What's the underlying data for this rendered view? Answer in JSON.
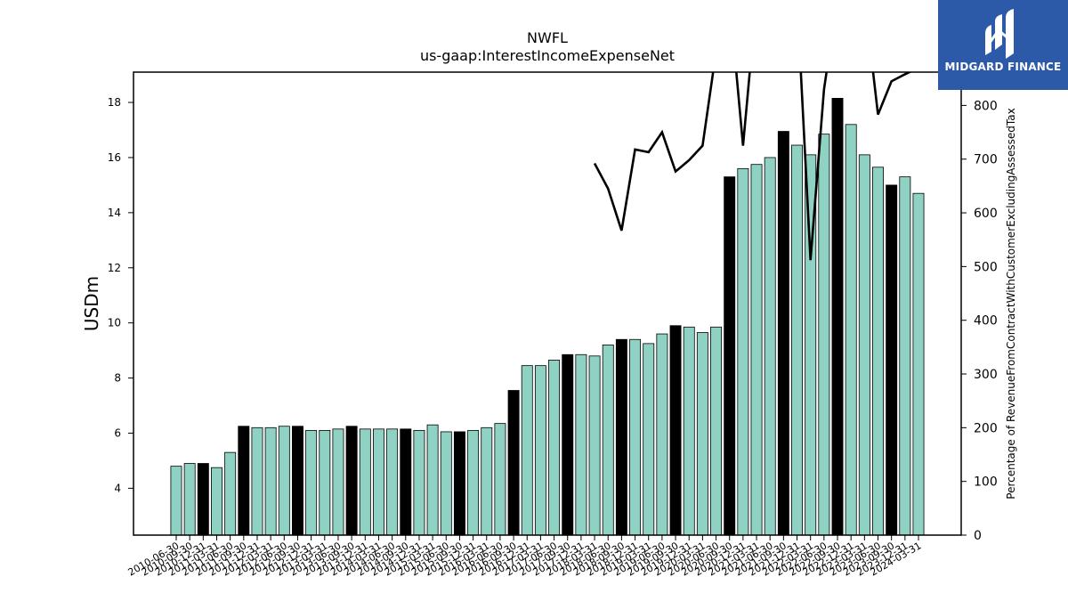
{
  "chart_data": {
    "type": "bar",
    "title": "NWFL",
    "subtitle": "us-gaap:InterestIncomeExpenseNet",
    "ylabel": "USDm",
    "y2label": "Percentage of RevenueFromContractWithCustomerExcludingAssessedTax",
    "ylim": [
      2.3,
      19.1
    ],
    "y2lim": [
      0,
      862
    ],
    "yticks": [
      4,
      6,
      8,
      10,
      12,
      14,
      16,
      18
    ],
    "y2ticks": [
      0,
      100,
      200,
      300,
      400,
      500,
      600,
      700,
      800
    ],
    "categories": [
      "2010-06-30",
      "2010-09-30",
      "2010-12-31",
      "2011-03-31",
      "2011-06-30",
      "2011-09-30",
      "2011-12-31",
      "2012-03-31",
      "2012-06-30",
      "2012-09-30",
      "2012-12-31",
      "2013-03-31",
      "2013-06-30",
      "2013-09-30",
      "2013-12-31",
      "2014-03-31",
      "2014-06-30",
      "2014-09-30",
      "2014-12-31",
      "2015-03-31",
      "2015-06-30",
      "2015-09-30",
      "2015-12-31",
      "2016-03-31",
      "2016-06-30",
      "2016-09-30",
      "2016-12-31",
      "2017-03-31",
      "2017-06-30",
      "2017-09-30",
      "2017-12-31",
      "2018-03-31",
      "2018-06-30",
      "2018-09-30",
      "2018-12-31",
      "2019-03-31",
      "2019-06-30",
      "2019-09-30",
      "2019-12-31",
      "2020-03-31",
      "2020-06-30",
      "2020-09-30",
      "2020-12-31",
      "2021-03-31",
      "2021-06-30",
      "2021-09-30",
      "2021-12-31",
      "2022-03-31",
      "2022-06-30",
      "2022-09-30",
      "2022-12-31",
      "2023-03-31",
      "2023-06-30",
      "2023-09-30",
      "2023-12-31",
      "2024-03-31"
    ],
    "values": [
      4.8,
      4.9,
      4.9,
      4.75,
      5.3,
      6.25,
      6.2,
      6.2,
      6.25,
      6.25,
      6.1,
      6.1,
      6.15,
      6.25,
      6.15,
      6.15,
      6.15,
      6.15,
      6.1,
      6.3,
      6.05,
      6.05,
      6.1,
      6.2,
      6.35,
      7.55,
      8.45,
      8.45,
      8.65,
      8.85,
      8.85,
      8.8,
      9.2,
      9.4,
      9.4,
      9.25,
      9.6,
      9.9,
      9.85,
      9.65,
      9.85,
      15.3,
      15.6,
      15.75,
      16.0,
      16.95,
      16.45,
      16.1,
      16.85,
      18.15,
      17.2,
      16.1,
      15.65,
      15.0,
      15.3,
      14.7
    ],
    "highlight": [
      false,
      false,
      true,
      false,
      false,
      true,
      false,
      false,
      false,
      true,
      false,
      false,
      false,
      true,
      false,
      false,
      false,
      true,
      false,
      false,
      false,
      true,
      false,
      false,
      false,
      true,
      false,
      false,
      false,
      true,
      false,
      false,
      false,
      true,
      false,
      false,
      false,
      true,
      false,
      false,
      false,
      true,
      false,
      false,
      false,
      true,
      false,
      false,
      false,
      true,
      false,
      false,
      false,
      true,
      false,
      false
    ],
    "line_values": [
      null,
      null,
      null,
      null,
      null,
      null,
      null,
      null,
      null,
      null,
      null,
      null,
      null,
      null,
      null,
      null,
      null,
      null,
      null,
      null,
      null,
      null,
      null,
      null,
      null,
      null,
      null,
      null,
      null,
      null,
      null,
      692,
      645,
      567,
      718,
      713,
      750,
      677,
      698,
      725,
      900,
      1000,
      725,
      1000,
      1000,
      1000,
      1000,
      512,
      830,
      1000,
      1000,
      1000,
      783,
      845,
      858,
      870
    ],
    "colors": {
      "bar": "#8fd1c3",
      "highlight_bar": "#000000",
      "line": "#000000"
    }
  },
  "logo": {
    "text": "MIDGARD FINANCE"
  }
}
